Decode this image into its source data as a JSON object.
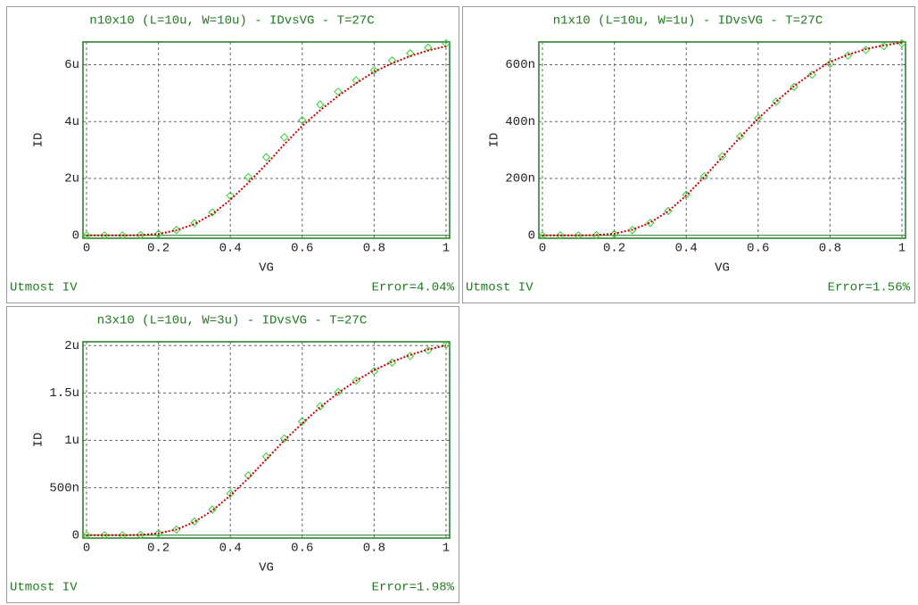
{
  "chart_data": [
    {
      "type": "line",
      "title": "n10x10 (L=10u, W=10u) - IDvsVG - T=27C",
      "xlabel": "VG",
      "ylabel": "ID",
      "source": "Utmost IV",
      "error": "Error=4.04%",
      "x": [
        0,
        0.05,
        0.1,
        0.15,
        0.2,
        0.25,
        0.3,
        0.35,
        0.4,
        0.45,
        0.5,
        0.55,
        0.6,
        0.65,
        0.7,
        0.75,
        0.8,
        0.85,
        0.9,
        0.95,
        1
      ],
      "xlim": [
        -0.01,
        1.01
      ],
      "xticks": [
        0,
        0.2,
        0.4,
        0.6,
        0.8,
        1
      ],
      "ylim": [
        -1e-07,
        6.8e-06
      ],
      "yticks": [
        0,
        {
          "value": 2e-06,
          "label": "2u"
        },
        {
          "value": 4e-06,
          "label": "4u"
        },
        {
          "value": 6e-06,
          "label": "6u"
        }
      ],
      "grid": true,
      "series": [
        {
          "color": "#33cc33",
          "style": "markers",
          "values": [
            0,
            0,
            0,
            1e-08,
            5e-08,
            1.9e-07,
            4.3e-07,
            8.1e-07,
            1.4e-06,
            2.05e-06,
            2.75e-06,
            3.45e-06,
            4.05e-06,
            4.6e-06,
            5.05e-06,
            5.45e-06,
            5.8e-06,
            6.15e-06,
            6.4e-06,
            6.6e-06,
            6.75e-06
          ]
        },
        {
          "color": "#cc0000",
          "style": "dotted",
          "values": [
            0,
            0,
            0,
            1e-08,
            5e-08,
            1.8e-07,
            4e-07,
            7.5e-07,
            1.25e-06,
            1.85e-06,
            2.5e-06,
            3.2e-06,
            3.85e-06,
            4.4e-06,
            4.9e-06,
            5.35e-06,
            5.75e-06,
            6.05e-06,
            6.3e-06,
            6.5e-06,
            6.65e-06
          ]
        }
      ]
    },
    {
      "type": "line",
      "title": "n1x10 (L=10u, W=1u) - IDvsVG - T=27C",
      "xlabel": "VG",
      "ylabel": "ID",
      "source": "Utmost IV",
      "error": "Error=1.56%",
      "x": [
        0,
        0.05,
        0.1,
        0.15,
        0.2,
        0.25,
        0.3,
        0.35,
        0.4,
        0.45,
        0.5,
        0.55,
        0.6,
        0.65,
        0.7,
        0.75,
        0.8,
        0.85,
        0.9,
        0.95,
        1
      ],
      "xlim": [
        -0.01,
        1.01
      ],
      "xticks": [
        0,
        0.2,
        0.4,
        0.6,
        0.8,
        1
      ],
      "ylim": [
        -1e-08,
        6.8e-07
      ],
      "yticks": [
        0,
        {
          "value": 2e-07,
          "label": "200n"
        },
        {
          "value": 4e-07,
          "label": "400n"
        },
        {
          "value": 6e-07,
          "label": "600n"
        }
      ],
      "grid": true,
      "series": [
        {
          "color": "#33cc33",
          "style": "markers",
          "values": [
            0,
            0,
            0,
            1e-09,
            5e-09,
            1.9e-08,
            4.4e-08,
            8.6e-08,
            1.43e-07,
            2.08e-07,
            2.78e-07,
            3.48e-07,
            4.12e-07,
            4.7e-07,
            5.22e-07,
            5.65e-07,
            6.03e-07,
            6.32e-07,
            6.52e-07,
            6.65e-07,
            6.75e-07
          ]
        },
        {
          "color": "#cc0000",
          "style": "dotted",
          "values": [
            0,
            0,
            0,
            1e-09,
            6e-09,
            2e-08,
            4.5e-08,
            8.5e-08,
            1.4e-07,
            2.05e-07,
            2.75e-07,
            3.45e-07,
            4.1e-07,
            4.7e-07,
            5.25e-07,
            5.7e-07,
            6.1e-07,
            6.35e-07,
            6.55e-07,
            6.68e-07,
            6.78e-07
          ]
        }
      ]
    },
    {
      "type": "line",
      "title": "n3x10 (L=10u, W=3u) - IDvsVG - T=27C",
      "xlabel": "VG",
      "ylabel": "ID",
      "source": "Utmost IV",
      "error": "Error=1.98%",
      "x": [
        0,
        0.05,
        0.1,
        0.15,
        0.2,
        0.25,
        0.3,
        0.35,
        0.4,
        0.45,
        0.5,
        0.55,
        0.6,
        0.65,
        0.7,
        0.75,
        0.8,
        0.85,
        0.9,
        0.95,
        1
      ],
      "xlim": [
        -0.01,
        1.01
      ],
      "xticks": [
        0,
        0.2,
        0.4,
        0.6,
        0.8,
        1
      ],
      "ylim": [
        -3e-08,
        2.04e-06
      ],
      "yticks": [
        0,
        {
          "value": 5e-07,
          "label": "500n"
        },
        {
          "value": 1e-06,
          "label": "1u"
        },
        {
          "value": 1.5e-06,
          "label": "1.5u"
        },
        {
          "value": 2e-06,
          "label": "2u"
        }
      ],
      "grid": true,
      "series": [
        {
          "color": "#33cc33",
          "style": "markers",
          "values": [
            0,
            0,
            0,
            3e-09,
            1.8e-08,
            6e-08,
            1.45e-07,
            2.7e-07,
            4.4e-07,
            6.3e-07,
            8.3e-07,
            1.02e-06,
            1.2e-06,
            1.36e-06,
            1.51e-06,
            1.63e-06,
            1.73e-06,
            1.82e-06,
            1.89e-06,
            1.95e-06,
            2.01e-06
          ]
        },
        {
          "color": "#cc0000",
          "style": "dotted",
          "values": [
            0,
            0,
            0,
            4e-09,
            2e-08,
            6e-08,
            1.4e-07,
            2.6e-07,
            4.2e-07,
            6e-07,
            8e-07,
            1e-06,
            1.18e-06,
            1.35e-06,
            1.5e-06,
            1.63e-06,
            1.74e-06,
            1.83e-06,
            1.9e-06,
            1.96e-06,
            2e-06
          ]
        }
      ]
    }
  ]
}
